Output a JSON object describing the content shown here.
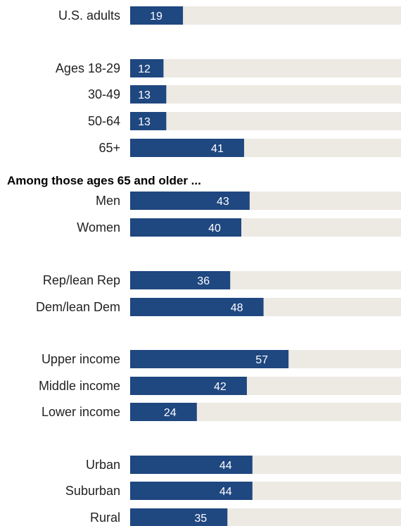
{
  "chart_data": {
    "type": "bar",
    "orientation": "horizontal",
    "xlim": [
      0,
      100
    ],
    "grid": false,
    "legend": "none",
    "colors": {
      "bar": "#1f4780",
      "track": "#ede9e3",
      "text": "#222222",
      "bar_text": "#ffffff"
    },
    "section_heading": "Among those ages 65 and older ...",
    "rows": [
      {
        "label": "U.S. adults",
        "value": 19
      },
      {
        "label": "Ages 18-29",
        "value": 12
      },
      {
        "label": "30-49",
        "value": 13
      },
      {
        "label": "50-64",
        "value": 13
      },
      {
        "label": "65+",
        "value": 41
      },
      {
        "label": "Men",
        "value": 43
      },
      {
        "label": "Women",
        "value": 40
      },
      {
        "label": "Rep/lean Rep",
        "value": 36
      },
      {
        "label": "Dem/lean Dem",
        "value": 48
      },
      {
        "label": "Upper income",
        "value": 57
      },
      {
        "label": "Middle income",
        "value": 42
      },
      {
        "label": "Lower income",
        "value": 24
      },
      {
        "label": "Urban",
        "value": 44
      },
      {
        "label": "Suburban",
        "value": 44
      },
      {
        "label": "Rural",
        "value": 35
      }
    ]
  }
}
